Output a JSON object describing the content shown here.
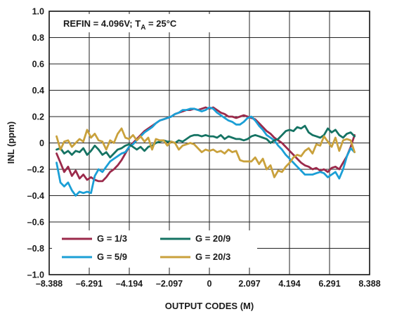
{
  "chart_data": {
    "type": "line",
    "xlabel": "OUTPUT CODES (M)",
    "ylabel": "INL (ppm)",
    "xlim": [
      -8.388,
      8.388
    ],
    "ylim": [
      -1.0,
      1.0
    ],
    "xticks": [
      -8.388,
      -6.291,
      -4.194,
      -2.097,
      0,
      2.097,
      4.194,
      6.291,
      8.388
    ],
    "xtick_labels": [
      "–8.388",
      "–6.291",
      "–4.194",
      "–2.097",
      "0",
      "2.097",
      "4.194",
      "6.291",
      "8.388"
    ],
    "yticks": [
      1.0,
      0.8,
      0.6,
      0.4,
      0.2,
      0,
      -0.2,
      -0.4,
      -0.6,
      -0.8,
      -1.0
    ],
    "ytick_labels": [
      "1.0",
      "0.8",
      "0.6",
      "0.4",
      "0.2",
      "0",
      "–0.2",
      "–0.4",
      "–0.6",
      "–0.8",
      "–1.0"
    ],
    "grid": true,
    "legend_position": "bottom-left",
    "annotation": {
      "main": "REFIN = 4.096V; T",
      "sub": "A",
      "tail": " = 25°C"
    },
    "series": [
      {
        "name": "G = 1/3",
        "color": "#9b2a4b",
        "x": [
          -8.0,
          -7.8,
          -7.6,
          -7.4,
          -7.2,
          -7.0,
          -6.8,
          -6.6,
          -6.4,
          -6.2,
          -6.0,
          -5.8,
          -5.6,
          -5.4,
          -5.2,
          -5.0,
          -4.8,
          -4.6,
          -4.4,
          -4.2,
          -4.0,
          -3.8,
          -3.6,
          -3.4,
          -3.2,
          -3.0,
          -2.8,
          -2.6,
          -2.4,
          -2.2,
          -2.0,
          -1.8,
          -1.6,
          -1.4,
          -1.2,
          -1.0,
          -0.8,
          -0.6,
          -0.4,
          -0.2,
          0.0,
          0.2,
          0.4,
          0.6,
          0.8,
          1.0,
          1.2,
          1.4,
          1.6,
          1.8,
          2.0,
          2.2,
          2.4,
          2.6,
          2.8,
          3.0,
          3.2,
          3.4,
          3.6,
          3.8,
          4.0,
          4.2,
          4.4,
          4.6,
          4.8,
          5.0,
          5.2,
          5.4,
          5.6,
          5.8,
          6.0,
          6.2,
          6.4,
          6.6,
          6.8,
          7.0,
          7.2,
          7.4,
          7.6
        ],
        "y": [
          -0.08,
          -0.15,
          -0.22,
          -0.18,
          -0.25,
          -0.21,
          -0.27,
          -0.24,
          -0.28,
          -0.26,
          -0.28,
          -0.29,
          -0.29,
          -0.26,
          -0.22,
          -0.2,
          -0.17,
          -0.13,
          -0.08,
          -0.03,
          0.0,
          0.03,
          0.06,
          0.09,
          0.11,
          0.13,
          0.15,
          0.17,
          0.18,
          0.19,
          0.2,
          0.22,
          0.23,
          0.24,
          0.25,
          0.25,
          0.26,
          0.25,
          0.26,
          0.27,
          0.26,
          0.27,
          0.25,
          0.23,
          0.22,
          0.2,
          0.2,
          0.19,
          0.2,
          0.21,
          0.2,
          0.19,
          0.18,
          0.15,
          0.12,
          0.09,
          0.07,
          0.04,
          0.02,
          0.0,
          -0.03,
          -0.06,
          -0.09,
          -0.12,
          -0.15,
          -0.17,
          -0.18,
          -0.2,
          -0.19,
          -0.21,
          -0.2,
          -0.22,
          -0.19,
          -0.18,
          -0.2,
          -0.15,
          -0.1,
          -0.03,
          0.06
        ]
      },
      {
        "name": "G = 5/9",
        "color": "#1b9fd6",
        "x": [
          -8.0,
          -7.8,
          -7.6,
          -7.4,
          -7.2,
          -7.0,
          -6.8,
          -6.6,
          -6.4,
          -6.2,
          -6.0,
          -5.8,
          -5.6,
          -5.4,
          -5.2,
          -5.0,
          -4.8,
          -4.6,
          -4.4,
          -4.2,
          -4.0,
          -3.8,
          -3.6,
          -3.4,
          -3.2,
          -3.0,
          -2.8,
          -2.6,
          -2.4,
          -2.2,
          -2.0,
          -1.8,
          -1.6,
          -1.4,
          -1.2,
          -1.0,
          -0.8,
          -0.6,
          -0.4,
          -0.2,
          0.0,
          0.2,
          0.4,
          0.6,
          0.8,
          1.0,
          1.2,
          1.4,
          1.6,
          1.8,
          2.0,
          2.2,
          2.4,
          2.6,
          2.8,
          3.0,
          3.2,
          3.4,
          3.6,
          3.8,
          4.0,
          4.2,
          4.4,
          4.6,
          4.8,
          5.0,
          5.2,
          5.4,
          5.6,
          5.8,
          6.0,
          6.2,
          6.4,
          6.6,
          6.8,
          7.0,
          7.2,
          7.4,
          7.6
        ],
        "y": [
          -0.15,
          -0.3,
          -0.33,
          -0.3,
          -0.36,
          -0.4,
          -0.37,
          -0.38,
          -0.37,
          -0.38,
          -0.25,
          -0.2,
          -0.22,
          -0.18,
          -0.14,
          -0.12,
          -0.1,
          -0.08,
          -0.07,
          -0.03,
          -0.01,
          0.02,
          0.05,
          0.08,
          0.1,
          0.12,
          0.15,
          0.17,
          0.18,
          0.19,
          0.2,
          0.22,
          0.23,
          0.25,
          0.25,
          0.26,
          0.26,
          0.25,
          0.24,
          0.25,
          0.27,
          0.26,
          0.23,
          0.21,
          0.19,
          0.17,
          0.16,
          0.14,
          0.14,
          0.16,
          0.19,
          0.2,
          0.17,
          0.13,
          0.1,
          0.06,
          0.04,
          0.02,
          -0.02,
          -0.05,
          -0.09,
          -0.12,
          -0.15,
          -0.18,
          -0.21,
          -0.24,
          -0.24,
          -0.24,
          -0.23,
          -0.22,
          -0.23,
          -0.26,
          -0.24,
          -0.22,
          -0.27,
          -0.2,
          -0.1,
          -0.04,
          -0.07
        ]
      },
      {
        "name": "G = 20/9",
        "color": "#157363",
        "x": [
          -8.0,
          -7.8,
          -7.6,
          -7.4,
          -7.2,
          -7.0,
          -6.8,
          -6.6,
          -6.4,
          -6.2,
          -6.0,
          -5.8,
          -5.6,
          -5.4,
          -5.2,
          -5.0,
          -4.8,
          -4.6,
          -4.4,
          -4.2,
          -4.0,
          -3.8,
          -3.6,
          -3.4,
          -3.2,
          -3.0,
          -2.8,
          -2.6,
          -2.4,
          -2.2,
          -2.0,
          -1.8,
          -1.6,
          -1.4,
          -1.2,
          -1.0,
          -0.8,
          -0.6,
          -0.4,
          -0.2,
          0.0,
          0.2,
          0.4,
          0.6,
          0.8,
          1.0,
          1.2,
          1.4,
          1.6,
          1.8,
          2.0,
          2.2,
          2.4,
          2.6,
          2.8,
          3.0,
          3.2,
          3.4,
          3.6,
          3.8,
          4.0,
          4.2,
          4.4,
          4.6,
          4.8,
          5.0,
          5.2,
          5.4,
          5.6,
          5.8,
          6.0,
          6.2,
          6.4,
          6.6,
          6.8,
          7.0,
          7.2,
          7.4,
          7.6
        ],
        "y": [
          -0.05,
          -0.04,
          -0.08,
          -0.06,
          -0.09,
          -0.06,
          -0.07,
          -0.04,
          -0.09,
          -0.06,
          -0.02,
          -0.05,
          -0.09,
          -0.07,
          -0.11,
          -0.08,
          -0.05,
          -0.04,
          -0.02,
          -0.01,
          -0.03,
          -0.05,
          -0.03,
          -0.06,
          -0.03,
          -0.02,
          0.0,
          0.01,
          0.02,
          0.01,
          0.01,
          0.0,
          0.02,
          0.01,
          0.03,
          0.05,
          0.06,
          0.06,
          0.05,
          0.06,
          0.05,
          0.05,
          0.04,
          0.06,
          0.03,
          0.05,
          0.04,
          0.03,
          0.03,
          0.02,
          0.03,
          0.05,
          0.06,
          0.05,
          0.04,
          0.03,
          0.0,
          0.02,
          0.03,
          0.06,
          0.09,
          0.1,
          0.09,
          0.12,
          0.11,
          0.13,
          0.08,
          0.06,
          0.05,
          0.04,
          0.06,
          0.11,
          0.08,
          0.1,
          0.06,
          0.04,
          0.07,
          0.08,
          0.05
        ]
      },
      {
        "name": "G = 20/3",
        "color": "#c9a13c",
        "x": [
          -8.0,
          -7.8,
          -7.6,
          -7.4,
          -7.2,
          -7.0,
          -6.8,
          -6.6,
          -6.4,
          -6.2,
          -6.0,
          -5.8,
          -5.6,
          -5.4,
          -5.2,
          -5.0,
          -4.8,
          -4.6,
          -4.4,
          -4.2,
          -4.0,
          -3.8,
          -3.6,
          -3.4,
          -3.2,
          -3.0,
          -2.8,
          -2.6,
          -2.4,
          -2.2,
          -2.0,
          -1.8,
          -1.6,
          -1.4,
          -1.2,
          -1.0,
          -0.8,
          -0.6,
          -0.4,
          -0.2,
          0.0,
          0.2,
          0.4,
          0.6,
          0.8,
          1.0,
          1.2,
          1.4,
          1.6,
          1.8,
          2.0,
          2.2,
          2.4,
          2.6,
          2.8,
          3.0,
          3.2,
          3.4,
          3.6,
          3.8,
          4.0,
          4.2,
          4.4,
          4.6,
          4.8,
          5.0,
          5.2,
          5.4,
          5.6,
          5.8,
          6.0,
          6.2,
          6.4,
          6.6,
          6.8,
          7.0,
          7.2,
          7.4,
          7.6
        ],
        "y": [
          0.05,
          -0.05,
          0.01,
          0.02,
          -0.03,
          0.0,
          0.03,
          0.01,
          0.1,
          0.04,
          0.07,
          0.02,
          0.01,
          -0.05,
          0.02,
          0.0,
          0.07,
          0.11,
          0.04,
          0.03,
          0.06,
          0.02,
          0.05,
          0.01,
          0.04,
          -0.05,
          0.03,
          0.02,
          0.02,
          -0.02,
          0.01,
          0.0,
          -0.05,
          -0.02,
          -0.01,
          0.0,
          -0.01,
          -0.04,
          -0.07,
          -0.05,
          -0.06,
          -0.05,
          -0.07,
          -0.06,
          -0.08,
          -0.05,
          -0.07,
          -0.06,
          -0.13,
          -0.14,
          -0.14,
          -0.14,
          -0.11,
          -0.16,
          -0.12,
          -0.2,
          -0.17,
          -0.26,
          -0.21,
          -0.22,
          -0.18,
          -0.15,
          -0.11,
          -0.09,
          -0.1,
          -0.06,
          -0.04,
          -0.08,
          -0.01,
          -0.02,
          0.05,
          0.01,
          -0.03,
          0.04,
          -0.06,
          0.02,
          0.03,
          0.02,
          -0.07
        ]
      }
    ]
  }
}
